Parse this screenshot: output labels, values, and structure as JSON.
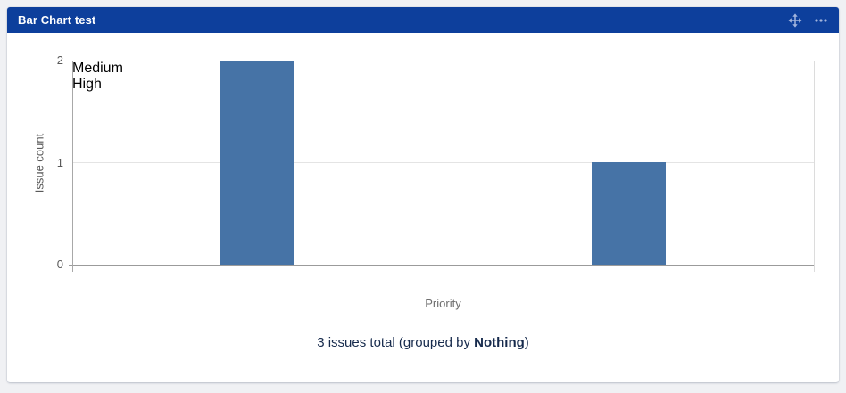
{
  "widget": {
    "title": "Bar Chart test",
    "header_controls": [
      {
        "name": "move-gadget",
        "icon": "move-icon"
      },
      {
        "name": "gadget-menu",
        "icon": "ellipsis-icon"
      }
    ]
  },
  "chart_data": {
    "type": "bar",
    "categories": [
      "Medium",
      "High"
    ],
    "values": [
      2,
      1
    ],
    "title": "",
    "xlabel": "Priority",
    "ylabel": "Issue count",
    "ylim": [
      0,
      2
    ],
    "yticks": [
      0,
      1,
      2
    ],
    "grid": true,
    "legend": false,
    "bar_color": "#4673a6",
    "bar_width_fraction": 0.2
  },
  "summary": {
    "total_issues": 3,
    "prefix": "3 issues total (grouped by ",
    "group_by": "Nothing",
    "suffix": ")"
  },
  "colors": {
    "page_bg": "#f0f1f4",
    "card_bg": "#ffffff",
    "header_bg": "#0d3f9c",
    "header_text": "#ffffff",
    "header_icon": "#a3b5dd",
    "bar": "#4673a6",
    "gridline": "#e4e4e4",
    "axis_line": "#9b9b9b",
    "axis_text": "#595959",
    "xlabel_text": "#6e6e6e",
    "summary_text": "#172b4d"
  }
}
